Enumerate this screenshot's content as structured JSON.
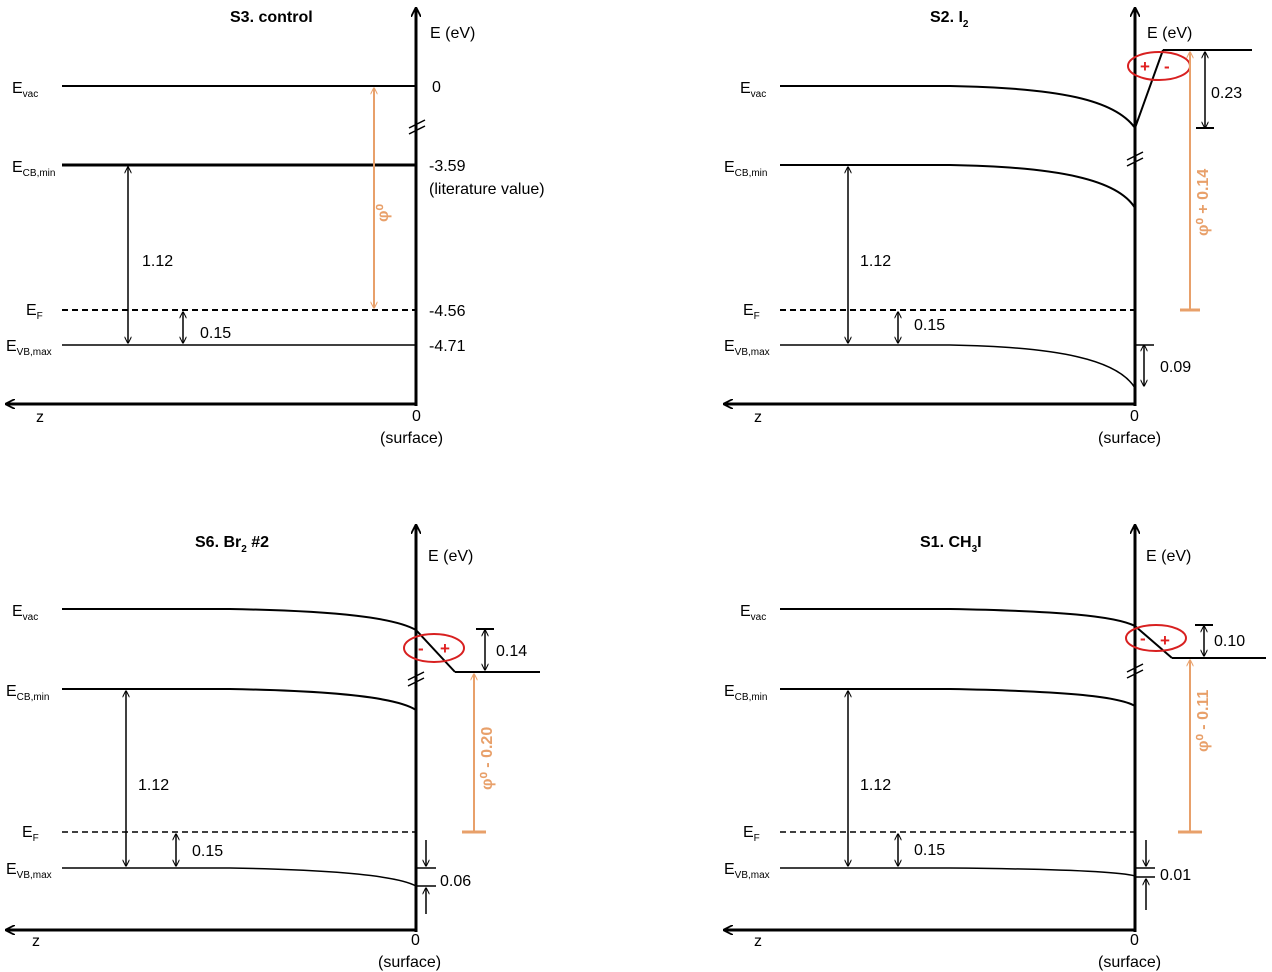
{
  "axis": {
    "energy": "E (eV)",
    "z": "z",
    "zero": "0",
    "surface": "(surface)"
  },
  "levels": {
    "vac": "vac",
    "cb": "CB,min",
    "f": "F",
    "vb": "VB,max"
  },
  "panels": {
    "s3": {
      "title": "S3. control",
      "ticks": {
        "vac": "0",
        "cb": "-3.59",
        "cb_note": "(literature value)",
        "f": "-4.56",
        "vb": "-4.71"
      },
      "gap": "1.12",
      "ef_vb": "0.15",
      "phi": "φ⁰"
    },
    "s2": {
      "title_main": "S2. I",
      "title_sub": "2",
      "gap": "1.12",
      "ef_vb": "0.15",
      "dipole": "0.23",
      "bend": "0.09",
      "phi": "φ⁰ + 0.14",
      "charge_left": "+",
      "charge_right": "-"
    },
    "s6": {
      "title_main": "S6. Br",
      "title_sub": "2",
      "title_rest": " #2",
      "gap": "1.12",
      "ef_vb": "0.15",
      "dipole": "0.14",
      "bend": "0.06",
      "phi": "φ⁰ - 0.20",
      "charge_left": "-",
      "charge_right": "+"
    },
    "s1": {
      "title_main": "S1. CH",
      "title_sub": "3",
      "title_rest": "I",
      "gap": "1.12",
      "ef_vb": "0.15",
      "dipole": "0.10",
      "bend": "0.01",
      "phi": "φ⁰ - 0.11",
      "charge_left": "-",
      "charge_right": "+"
    }
  },
  "colors": {
    "line": "#000000",
    "phi": "#e8a06a",
    "dipole_ring": "#d82020"
  }
}
